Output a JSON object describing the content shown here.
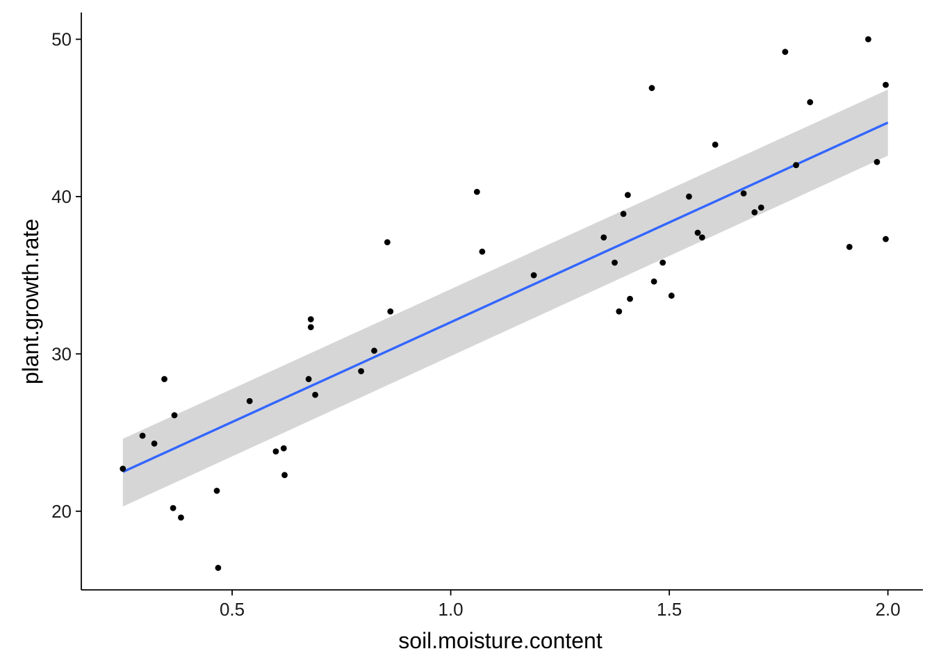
{
  "chart_data": {
    "type": "scatter",
    "title": "",
    "xlabel": "soil.moisture.content",
    "ylabel": "plant.growth.rate",
    "xlim": [
      0.155,
      2.08
    ],
    "ylim": [
      15.0,
      51.7
    ],
    "x_ticks": [
      0.5,
      1.0,
      1.5,
      2.0
    ],
    "x_tick_labels": [
      "0.5",
      "1.0",
      "1.5",
      "2.0"
    ],
    "y_ticks": [
      20,
      30,
      40,
      50
    ],
    "y_tick_labels": [
      "20",
      "30",
      "40",
      "50"
    ],
    "grid": false,
    "legend": "none",
    "colors": {
      "points": "#000000",
      "fit_line": "#3366FF",
      "confidence_band": "#999999"
    },
    "points": {
      "x": [
        0.25,
        0.295,
        0.322,
        0.345,
        0.365,
        0.368,
        0.383,
        0.465,
        0.468,
        0.54,
        0.6,
        0.618,
        0.62,
        0.675,
        0.68,
        0.68,
        0.69,
        0.795,
        0.825,
        0.855,
        0.862,
        1.06,
        1.072,
        1.19,
        1.35,
        1.375,
        1.385,
        1.395,
        1.405,
        1.41,
        1.46,
        1.465,
        1.485,
        1.505,
        1.545,
        1.565,
        1.575,
        1.605,
        1.67,
        1.695,
        1.71,
        1.765,
        1.79,
        1.822,
        1.912,
        1.955,
        1.975,
        1.995,
        1.995
      ],
      "y": [
        22.7,
        24.8,
        24.3,
        28.4,
        20.2,
        26.1,
        19.6,
        21.3,
        16.4,
        27.0,
        23.8,
        24.0,
        22.3,
        28.4,
        32.2,
        31.7,
        27.4,
        28.9,
        30.2,
        37.1,
        32.7,
        40.3,
        36.5,
        35.0,
        37.4,
        35.8,
        32.7,
        38.9,
        40.1,
        33.5,
        46.9,
        34.6,
        35.8,
        33.7,
        40.0,
        37.7,
        37.4,
        43.3,
        40.2,
        39.0,
        39.3,
        49.2,
        42.0,
        46.0,
        36.8,
        50.0,
        42.2,
        47.1,
        37.3
      ]
    },
    "fit": {
      "method": "lm",
      "x": [
        0.25,
        2.0
      ],
      "y": [
        22.5,
        44.7
      ],
      "ci_lower": [
        20.3,
        42.6
      ],
      "ci_upper": [
        24.6,
        46.8
      ]
    }
  }
}
